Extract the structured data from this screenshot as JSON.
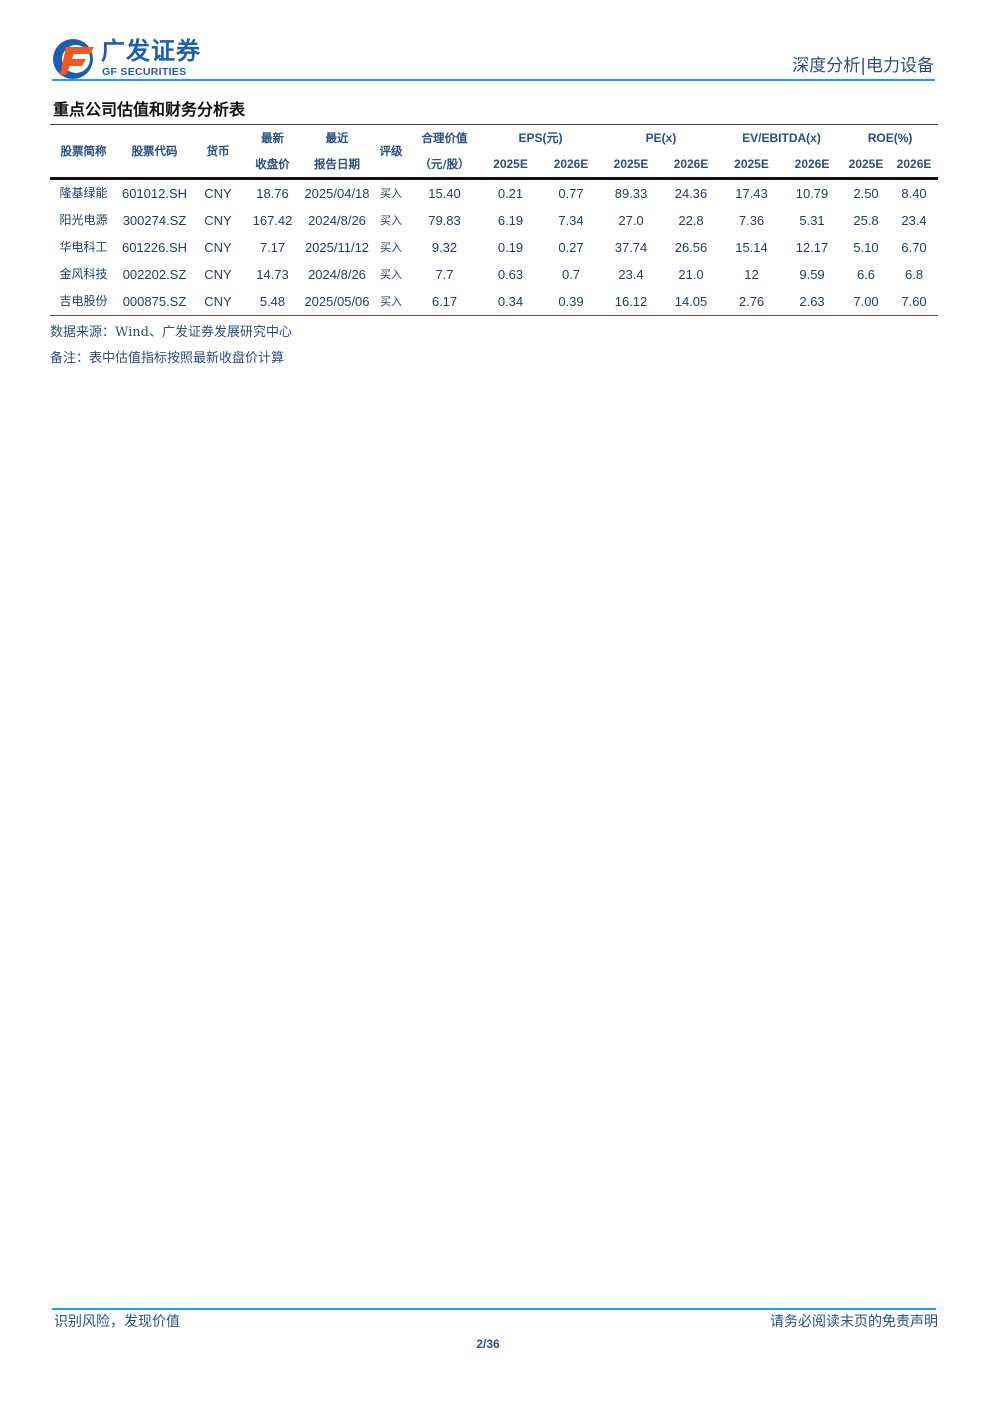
{
  "header": {
    "logo_cn": "广发证券",
    "logo_en": "GF SECURITIES",
    "section": "深度分析|电力设备",
    "brand_colors": {
      "blue": "#1d5fae",
      "orange": "#f05a22",
      "line": "#1aa3e0"
    }
  },
  "table": {
    "title": "重点公司估值和财务分析表",
    "headers": {
      "name": "股票简称",
      "code": "股票代码",
      "currency": "货币",
      "price_top": "最新",
      "price_bottom": "收盘价",
      "date_top": "最近",
      "date_bottom": "报告日期",
      "rating": "评级",
      "fair_top": "合理价值",
      "fair_bottom": "（元/股）",
      "eps": "EPS(元)",
      "pe": "PE(x)",
      "ev": "EV/EBITDA(x)",
      "roe": "ROE(%)",
      "years": [
        "2025E",
        "2026E",
        "2025E",
        "2026E",
        "2025E",
        "2026E",
        "2025E",
        "2026E"
      ]
    },
    "rows": [
      [
        "隆基绿能",
        "601012.SH",
        "CNY",
        "18.76",
        "2025/04/18",
        "买入",
        "15.40",
        "0.21",
        "0.77",
        "89.33",
        "24.36",
        "17.43",
        "10.79",
        "2.50",
        "8.40"
      ],
      [
        "阳光电源",
        "300274.SZ",
        "CNY",
        "167.42",
        "2024/8/26",
        "买入",
        "79.83",
        "6.19",
        "7.34",
        "27.0",
        "22.8",
        "7.36",
        "5.31",
        "25.8",
        "23.4"
      ],
      [
        "华电科工",
        "601226.SH",
        "CNY",
        "7.17",
        "2025/11/12",
        "买入",
        "9.32",
        "0.19",
        "0.27",
        "37.74",
        "26.56",
        "15.14",
        "12.17",
        "5.10",
        "6.70"
      ],
      [
        "金风科技",
        "002202.SZ",
        "CNY",
        "14.73",
        "2024/8/26",
        "买入",
        "7.7",
        "0.63",
        "0.7",
        "23.4",
        "21.0",
        "12",
        "9.59",
        "6.6",
        "6.8"
      ],
      [
        "吉电股份",
        "000875.SZ",
        "CNY",
        "5.48",
        "2025/05/06",
        "买入",
        "6.17",
        "0.34",
        "0.39",
        "16.12",
        "14.05",
        "2.76",
        "2.63",
        "7.00",
        "7.60"
      ]
    ],
    "source": "数据来源：Wind、广发证券发展研究中心",
    "note": "备注：表中估值指标按照最新收盘价计算"
  },
  "footer": {
    "left": "识别风险，发现价值",
    "right": "请务必阅读末页的免责声明",
    "page": "2/36"
  }
}
